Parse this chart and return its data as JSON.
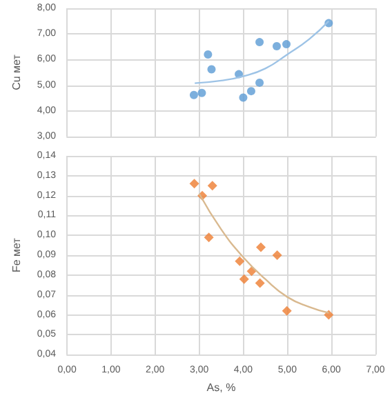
{
  "chart_data": [
    {
      "type": "scatter",
      "ylabel": "Cu мет",
      "xlim": [
        0,
        7
      ],
      "xticks": [
        0,
        1,
        2,
        3,
        4,
        5,
        6,
        7
      ],
      "ylim": [
        3,
        8
      ],
      "yticks": [
        {
          "value": 3,
          "label": "3,00"
        },
        {
          "value": 4,
          "label": "4,00"
        },
        {
          "value": 5,
          "label": "5,00"
        },
        {
          "value": 6,
          "label": "6,00"
        },
        {
          "value": 7,
          "label": "7,00"
        },
        {
          "value": 8,
          "label": "8,00"
        }
      ],
      "grid": true,
      "tick_labels": "y",
      "marker": "circle",
      "series": [
        {
          "color": "#5b9bd5",
          "x": [
            2.88,
            3.06,
            3.2,
            3.28,
            3.9,
            4.0,
            4.18,
            4.37,
            4.37,
            4.76,
            4.98,
            5.94
          ],
          "values": [
            4.62,
            4.7,
            6.2,
            5.62,
            5.43,
            4.52,
            4.77,
            5.1,
            6.68,
            6.52,
            6.6,
            7.42
          ]
        },
        {
          "type": "line",
          "color": "#9dc3e6",
          "marker": "none",
          "x": [
            2.9,
            3.5,
            4.0,
            4.5,
            5.0,
            5.5,
            5.94
          ],
          "values": [
            5.08,
            5.18,
            5.35,
            5.65,
            6.2,
            6.8,
            7.5
          ]
        }
      ]
    },
    {
      "type": "scatter",
      "xlabel": "As, %",
      "ylabel": "Fe мет",
      "xlim": [
        0,
        7
      ],
      "xticks": [
        {
          "value": 0,
          "label": "0,00"
        },
        {
          "value": 1,
          "label": "1,00"
        },
        {
          "value": 2,
          "label": "2,00"
        },
        {
          "value": 3,
          "label": "3,00"
        },
        {
          "value": 4,
          "label": "4,00"
        },
        {
          "value": 5,
          "label": "5,00"
        },
        {
          "value": 6,
          "label": "6,00"
        },
        {
          "value": 7,
          "label": "7,00"
        }
      ],
      "ylim": [
        0.04,
        0.14
      ],
      "yticks": [
        {
          "value": 0.04,
          "label": "0,04"
        },
        {
          "value": 0.05,
          "label": "0,05"
        },
        {
          "value": 0.06,
          "label": "0,06"
        },
        {
          "value": 0.07,
          "label": "0,07"
        },
        {
          "value": 0.08,
          "label": "0,08"
        },
        {
          "value": 0.09,
          "label": "0,09"
        },
        {
          "value": 0.1,
          "label": "0,10"
        },
        {
          "value": 0.11,
          "label": "0,11"
        },
        {
          "value": 0.12,
          "label": "0,12"
        },
        {
          "value": 0.13,
          "label": "0,13"
        },
        {
          "value": 0.14,
          "label": "0,14"
        }
      ],
      "grid": true,
      "marker": "diamond",
      "series": [
        {
          "color": "#ed7d31",
          "x": [
            2.89,
            3.07,
            3.3,
            3.22,
            3.92,
            4.19,
            4.02,
            4.38,
            4.4,
            4.77,
            4.99,
            5.94
          ],
          "values": [
            0.126,
            0.12,
            0.125,
            0.099,
            0.087,
            0.082,
            0.078,
            0.076,
            0.094,
            0.09,
            0.062,
            0.06
          ]
        },
        {
          "type": "line",
          "color": "#d9b98f",
          "marker": "none",
          "x": [
            3.0,
            3.5,
            4.0,
            4.5,
            5.0,
            5.5,
            5.94
          ],
          "values": [
            0.121,
            0.103,
            0.089,
            0.078,
            0.069,
            0.064,
            0.061
          ]
        }
      ]
    }
  ]
}
